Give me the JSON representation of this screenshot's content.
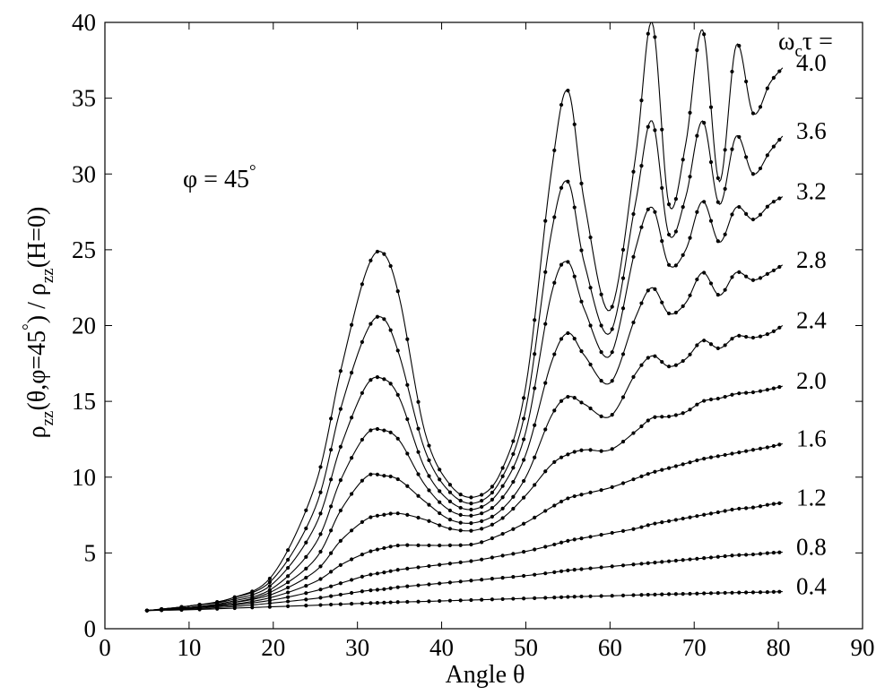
{
  "chart_data": {
    "type": "line",
    "title": "",
    "xlabel": "Angle θ",
    "ylabel": "ρ_zz(θ,φ=45°) / ρ_zz(H=0)",
    "xlim": [
      0,
      90
    ],
    "ylim": [
      0,
      40
    ],
    "x_ticks": [
      0,
      10,
      20,
      30,
      40,
      50,
      60,
      70,
      80,
      90
    ],
    "y_ticks": [
      0,
      5,
      10,
      15,
      20,
      25,
      30,
      35,
      40
    ],
    "grid": false,
    "annotation": "φ = 45°",
    "legend_title": "ω_cτ =",
    "markers": "small filled dots along every curve",
    "series": [
      {
        "name": "4.0",
        "x": [
          5,
          10,
          15,
          20,
          25,
          28,
          31,
          33,
          35,
          38,
          41,
          44,
          47,
          50,
          53,
          55,
          57,
          60,
          63,
          65,
          67,
          69,
          71,
          73,
          75,
          77,
          79,
          80.5
        ],
        "values": [
          1.2,
          1.5,
          2.0,
          3.6,
          9.5,
          17.0,
          23.5,
          24.8,
          21.8,
          13.0,
          9.5,
          8.7,
          10.3,
          16.0,
          30.0,
          35.5,
          28.0,
          21.0,
          31.0,
          40.0,
          28.0,
          32.0,
          39.5,
          29.5,
          38.5,
          34.0,
          36.0,
          37.0
        ]
      },
      {
        "name": "3.6",
        "x": [
          5,
          10,
          15,
          20,
          25,
          28,
          31,
          33,
          35,
          38,
          41,
          44,
          47,
          50,
          53,
          55,
          57,
          60,
          63,
          65,
          67,
          69,
          71,
          73,
          75,
          77,
          79,
          80.5
        ],
        "values": [
          1.2,
          1.5,
          2.0,
          3.3,
          8.0,
          14.5,
          19.5,
          20.5,
          18.0,
          11.8,
          9.0,
          8.3,
          9.8,
          14.5,
          26.0,
          29.5,
          24.0,
          19.5,
          28.0,
          33.5,
          26.0,
          28.5,
          33.5,
          28.0,
          32.5,
          30.0,
          31.5,
          32.5
        ]
      },
      {
        "name": "3.2",
        "x": [
          5,
          10,
          15,
          20,
          25,
          28,
          31,
          33,
          35,
          38,
          41,
          44,
          47,
          50,
          53,
          55,
          57,
          60,
          63,
          65,
          67,
          69,
          71,
          73,
          75,
          77,
          79,
          80.5
        ],
        "values": [
          1.2,
          1.5,
          1.9,
          3.0,
          6.8,
          12.0,
          16.0,
          16.5,
          15.2,
          10.6,
          8.4,
          7.9,
          9.2,
          13.0,
          22.0,
          24.2,
          21.0,
          18.0,
          25.0,
          27.8,
          24.0,
          25.0,
          28.2,
          25.5,
          27.8,
          27.0,
          28.0,
          28.5
        ]
      },
      {
        "name": "2.8",
        "x": [
          5,
          10,
          15,
          20,
          25,
          28,
          31,
          33,
          35,
          38,
          41,
          44,
          47,
          50,
          53,
          55,
          57,
          60,
          63,
          65,
          67,
          69,
          71,
          73,
          75,
          77,
          79,
          80.5
        ],
        "values": [
          1.2,
          1.4,
          1.8,
          2.7,
          5.6,
          9.8,
          12.8,
          13.1,
          12.4,
          9.5,
          7.8,
          7.5,
          8.5,
          11.5,
          17.5,
          19.5,
          18.0,
          16.2,
          20.5,
          22.5,
          20.8,
          21.5,
          23.5,
          22.0,
          23.5,
          23.0,
          23.5,
          24.0
        ]
      },
      {
        "name": "2.4",
        "x": [
          5,
          10,
          15,
          20,
          25,
          28,
          31,
          33,
          35,
          38,
          41,
          44,
          47,
          50,
          53,
          55,
          57,
          60,
          63,
          65,
          67,
          69,
          71,
          73,
          75,
          77,
          79,
          80.5
        ],
        "values": [
          1.2,
          1.4,
          1.7,
          2.5,
          4.6,
          7.8,
          10.0,
          10.1,
          9.8,
          8.4,
          7.2,
          7.0,
          7.8,
          10.0,
          14.0,
          15.3,
          14.8,
          14.0,
          16.8,
          18.0,
          17.3,
          17.8,
          19.0,
          18.5,
          19.3,
          19.2,
          19.5,
          20.0
        ]
      },
      {
        "name": "2.0",
        "x": [
          5,
          10,
          15,
          20,
          25,
          28,
          31,
          33,
          35,
          38,
          41,
          44,
          47,
          50,
          53,
          55,
          57,
          60,
          63,
          65,
          67,
          69,
          71,
          73,
          75,
          77,
          79,
          80.5
        ],
        "values": [
          1.2,
          1.4,
          1.7,
          2.3,
          3.8,
          5.8,
          7.2,
          7.5,
          7.6,
          7.2,
          6.6,
          6.5,
          7.2,
          8.8,
          10.8,
          11.5,
          11.8,
          11.8,
          13.0,
          13.9,
          14.0,
          14.3,
          15.0,
          15.2,
          15.5,
          15.6,
          15.8,
          16.0
        ]
      },
      {
        "name": "1.6",
        "x": [
          5,
          10,
          15,
          20,
          25,
          28,
          31,
          33,
          35,
          38,
          41,
          44,
          47,
          50,
          53,
          55,
          57,
          60,
          63,
          65,
          67,
          69,
          71,
          73,
          75,
          77,
          79,
          80.5
        ],
        "values": [
          1.2,
          1.4,
          1.6,
          2.1,
          3.1,
          4.2,
          5.0,
          5.3,
          5.5,
          5.5,
          5.5,
          5.6,
          6.2,
          7.0,
          8.0,
          8.6,
          8.9,
          9.3,
          9.9,
          10.3,
          10.6,
          10.9,
          11.2,
          11.4,
          11.6,
          11.8,
          12.0,
          12.2
        ]
      },
      {
        "name": "1.2",
        "x": [
          5,
          10,
          15,
          20,
          25,
          28,
          31,
          33,
          35,
          38,
          41,
          44,
          47,
          50,
          53,
          55,
          57,
          60,
          63,
          65,
          67,
          69,
          71,
          73,
          75,
          77,
          79,
          80.5
        ],
        "values": [
          1.2,
          1.35,
          1.55,
          1.9,
          2.5,
          3.0,
          3.5,
          3.7,
          3.9,
          4.1,
          4.3,
          4.5,
          4.8,
          5.1,
          5.5,
          5.8,
          6.0,
          6.3,
          6.6,
          6.9,
          7.1,
          7.3,
          7.5,
          7.7,
          7.9,
          8.0,
          8.2,
          8.3
        ]
      },
      {
        "name": "0.8",
        "x": [
          5,
          10,
          15,
          20,
          25,
          28,
          31,
          33,
          35,
          38,
          41,
          44,
          47,
          50,
          53,
          55,
          57,
          60,
          63,
          65,
          67,
          69,
          71,
          73,
          75,
          77,
          79,
          80.5
        ],
        "values": [
          1.2,
          1.3,
          1.45,
          1.7,
          2.0,
          2.25,
          2.5,
          2.6,
          2.75,
          2.9,
          3.05,
          3.2,
          3.35,
          3.5,
          3.7,
          3.85,
          3.95,
          4.1,
          4.25,
          4.35,
          4.45,
          4.55,
          4.65,
          4.75,
          4.85,
          4.9,
          5.0,
          5.05
        ]
      },
      {
        "name": "0.4",
        "x": [
          5,
          10,
          15,
          20,
          25,
          28,
          31,
          33,
          35,
          38,
          41,
          44,
          47,
          50,
          53,
          55,
          57,
          60,
          63,
          65,
          67,
          69,
          71,
          73,
          75,
          77,
          79,
          80.5
        ],
        "values": [
          1.2,
          1.25,
          1.35,
          1.45,
          1.55,
          1.62,
          1.68,
          1.72,
          1.76,
          1.8,
          1.85,
          1.9,
          1.95,
          2.0,
          2.05,
          2.1,
          2.13,
          2.17,
          2.22,
          2.25,
          2.28,
          2.3,
          2.33,
          2.36,
          2.38,
          2.4,
          2.42,
          2.45
        ]
      }
    ]
  }
}
